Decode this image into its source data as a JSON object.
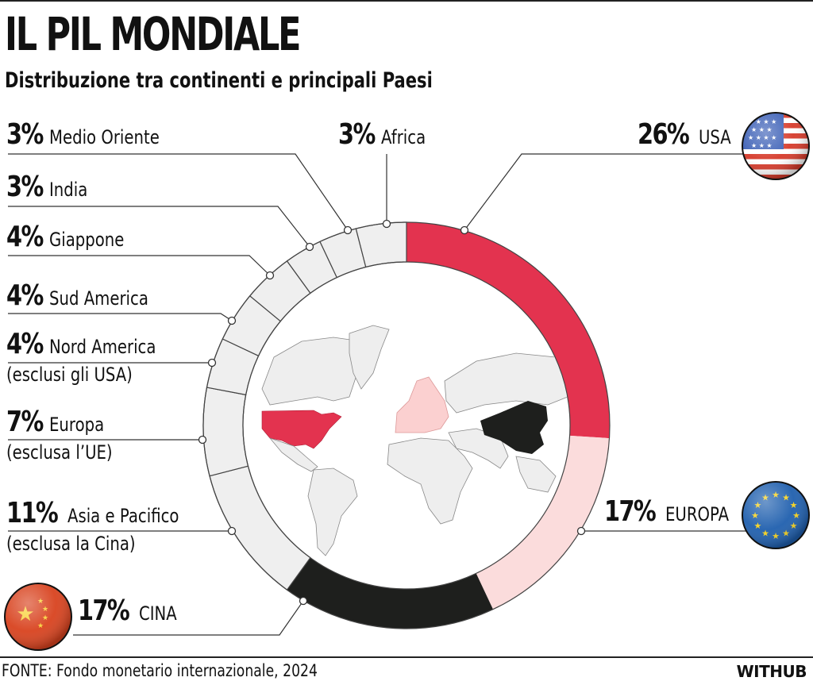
{
  "header": {
    "title": "IL PIL MONDIALE",
    "subtitle": "Distribuzione tra continenti e principali Paesi"
  },
  "labels": {
    "medio_oriente": {
      "pct": "3%",
      "name": "Medio Oriente"
    },
    "india": {
      "pct": "3%",
      "name": "India"
    },
    "giappone": {
      "pct": "4%",
      "name": "Giappone"
    },
    "sud_america": {
      "pct": "4%",
      "name": "Sud America"
    },
    "nord_america": {
      "pct": "4%",
      "name": "Nord America",
      "sub": "(esclusi gli USA)"
    },
    "europa_non_ue": {
      "pct": "7%",
      "name": "Europa",
      "sub": "(esclusa l’UE)"
    },
    "asia_pacifico": {
      "pct": "11%",
      "name": "Asia e Pacifico",
      "sub": "(esclusa la Cina)"
    },
    "cina": {
      "pct": "17%",
      "name": "CINA"
    },
    "africa": {
      "pct": "3%",
      "name": "Africa"
    },
    "usa": {
      "pct": "26%",
      "name": "USA"
    },
    "europa": {
      "pct": "17%",
      "name": "EUROPA"
    }
  },
  "footer": {
    "source": "FONTE: Fondo monetario internazionale, 2024",
    "brand": "WITHUB"
  },
  "colors": {
    "usa": "#e3334f",
    "europa": "#fbdcdc",
    "cina": "#1e1f1d",
    "other": "#efefef",
    "outline": "#444444"
  },
  "chart_data": {
    "type": "pie",
    "variant": "donut",
    "title": "IL PIL MONDIALE",
    "subtitle": "Distribuzione tra continenti e principali Paesi",
    "unit": "% of world GDP",
    "categories": [
      "USA",
      "EUROPA",
      "CINA",
      "Asia e Pacifico (esclusa la Cina)",
      "Europa (esclusa l’UE)",
      "Nord America (esclusi gli USA)",
      "Sud America",
      "Giappone",
      "India",
      "Medio Oriente",
      "Africa"
    ],
    "values": [
      26,
      17,
      17,
      11,
      7,
      4,
      4,
      4,
      3,
      3,
      3
    ],
    "slice_colors": [
      "#e3334f",
      "#fbdcdc",
      "#1e1f1d",
      "#efefef",
      "#efefef",
      "#efefef",
      "#efefef",
      "#efefef",
      "#efefef",
      "#efefef",
      "#efefef"
    ],
    "start_angle": "12 o'clock, clockwise",
    "center_image": "world map highlighting USA (red), EU (pink), China (black)",
    "source": "FONTE: Fondo monetario internazionale, 2024"
  }
}
